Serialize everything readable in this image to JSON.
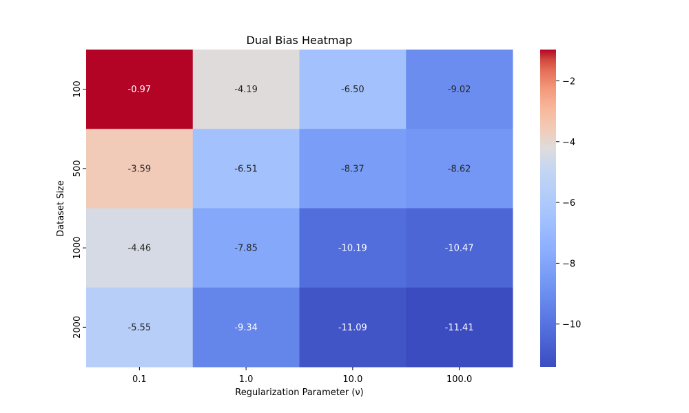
{
  "chart_data": {
    "type": "heatmap",
    "title": "Dual Bias Heatmap",
    "xlabel": "Regularization Parameter (ν)",
    "ylabel": "Dataset Size",
    "x_categories": [
      "0.1",
      "1.0",
      "10.0",
      "100.0"
    ],
    "y_categories": [
      "100",
      "500",
      "1000",
      "2000"
    ],
    "values": [
      [
        -0.97,
        -4.19,
        -6.5,
        -9.02
      ],
      [
        -3.59,
        -6.51,
        -8.37,
        -8.62
      ],
      [
        -4.46,
        -7.85,
        -10.19,
        -10.47
      ],
      [
        -5.55,
        -9.34,
        -11.09,
        -11.41
      ]
    ],
    "value_format": "0.00",
    "colormap": "coolwarm",
    "color_range": [
      -11.41,
      -0.97
    ],
    "colorbar": {
      "ticks": [
        -2,
        -4,
        -6,
        -8,
        -10
      ],
      "tick_labels": [
        "−2",
        "−4",
        "−6",
        "−8",
        "−10"
      ],
      "position": "right"
    },
    "grid": false
  }
}
